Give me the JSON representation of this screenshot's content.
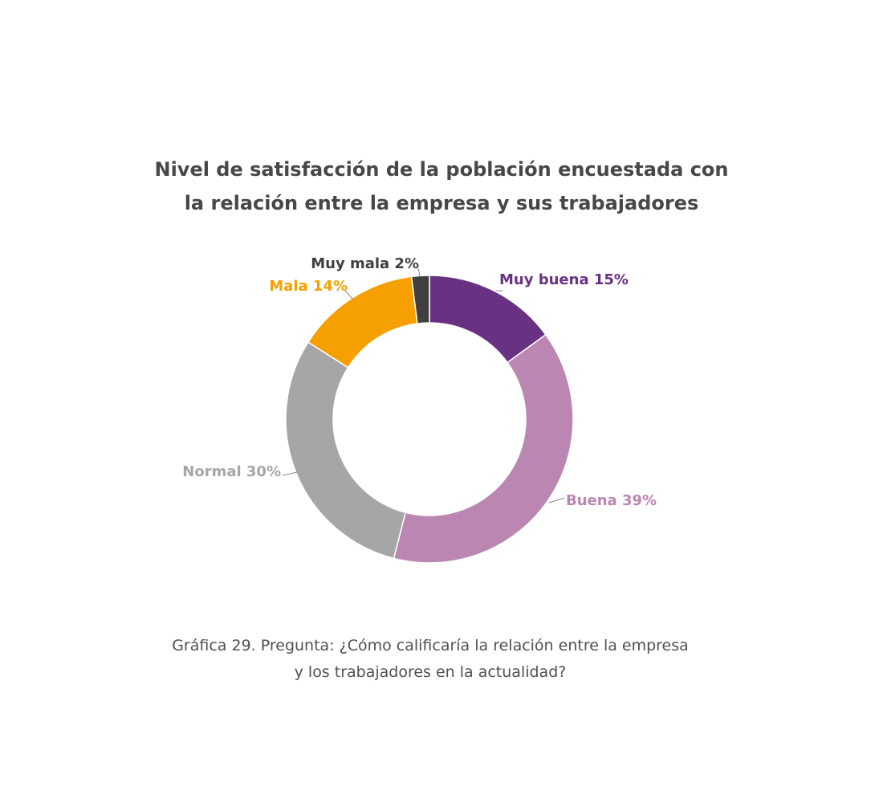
{
  "chart_data": {
    "type": "pie",
    "variant": "donut",
    "title_lines": [
      "Nivel de satisfacción de la población encuestada con",
      "la relación entre la empresa y sus trabajadores"
    ],
    "slices": [
      {
        "label": "Muy buena 15%",
        "value": 15,
        "color": "#693182"
      },
      {
        "label": "Buena 39%",
        "value": 39,
        "color": "#bb87b2"
      },
      {
        "label": "Normal 30%",
        "value": 30,
        "color": "#a6a6a6"
      },
      {
        "label": "Mala 14%",
        "value": 14,
        "color": "#f5a000"
      },
      {
        "label": "Muy mala 2%",
        "value": 2,
        "color": "#404040"
      }
    ],
    "legend": "none"
  },
  "caption": {
    "line1": "Gráfica 29. Pregunta: ¿Cómo calificaría la relación entre la empresa",
    "line2": "y los trabajadores en la actualidad?"
  }
}
